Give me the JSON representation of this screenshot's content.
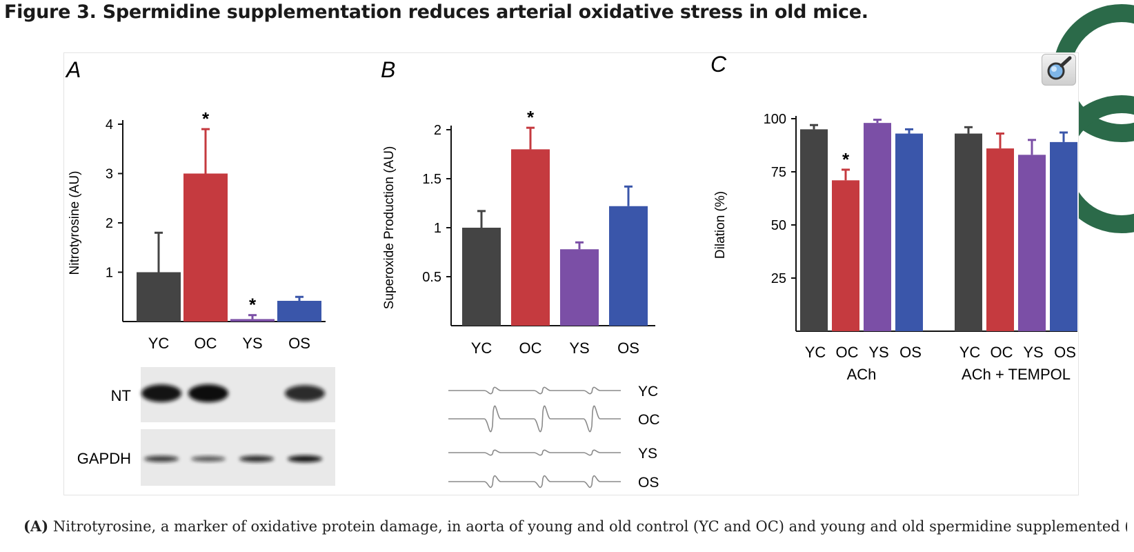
{
  "figure": {
    "title": "Figure 3. Spermidine supplementation reduces arterial oxidative stress in old mice."
  },
  "zoom_button": {
    "icon": "magnifier-icon"
  },
  "panels": {
    "a": {
      "letter": "A",
      "blot": {
        "rows": [
          {
            "label": "NT",
            "intensities": [
              0.95,
              1.0,
              0.0,
              0.78
            ]
          },
          {
            "label": "GAPDH",
            "intensities": [
              0.7,
              0.5,
              0.8,
              0.95
            ]
          }
        ]
      }
    },
    "b": {
      "letter": "B",
      "epr": {
        "labels": [
          "YC",
          "OC",
          "YS",
          "OS"
        ],
        "amplitudes": [
          0.25,
          1.0,
          0.2,
          0.45
        ]
      }
    },
    "c": {
      "letter": "C"
    }
  },
  "chart_data": [
    {
      "id": "panel-a",
      "type": "bar",
      "categories": [
        "YC",
        "OC",
        "YS",
        "OS"
      ],
      "values": [
        1.0,
        3.0,
        0.05,
        0.42
      ],
      "errors": [
        0.8,
        0.9,
        0.08,
        0.08
      ],
      "colors": [
        "#444444",
        "#c53a3f",
        "#7b4fa6",
        "#3a56aa"
      ],
      "significance": [
        "",
        "*",
        "*",
        ""
      ],
      "xlabel": "",
      "ylabel": "Nitrotyrosine (AU)",
      "ylim": [
        0,
        4
      ],
      "yticks": [
        1,
        2,
        3,
        4
      ],
      "ytick_labels": [
        "1",
        "2",
        "3",
        "4"
      ]
    },
    {
      "id": "panel-b",
      "type": "bar",
      "categories": [
        "YC",
        "OC",
        "YS",
        "OS"
      ],
      "values": [
        1.0,
        1.8,
        0.78,
        1.22
      ],
      "errors": [
        0.17,
        0.22,
        0.07,
        0.2
      ],
      "colors": [
        "#444444",
        "#c53a3f",
        "#7b4fa6",
        "#3a56aa"
      ],
      "significance": [
        "",
        "*",
        "",
        ""
      ],
      "xlabel": "",
      "ylabel": "Superoxide Production (AU)",
      "ylim": [
        0,
        2
      ],
      "yticks": [
        0.5,
        1,
        1.5,
        2
      ],
      "ytick_labels": [
        "0.5",
        "1",
        "1.5",
        "2"
      ]
    },
    {
      "id": "panel-c",
      "type": "bar",
      "groups": [
        "ACh",
        "ACh + TEMPOL"
      ],
      "categories": [
        "YC",
        "OC",
        "YS",
        "OS"
      ],
      "series": [
        {
          "name": "ACh",
          "values": [
            95,
            71,
            98,
            93
          ],
          "errors": [
            2,
            5,
            1.5,
            2
          ],
          "significance": [
            "",
            "*",
            "",
            ""
          ]
        },
        {
          "name": "ACh + TEMPOL",
          "values": [
            93,
            86,
            83,
            89
          ],
          "errors": [
            3,
            7,
            7,
            4.5
          ],
          "significance": [
            "",
            "",
            "",
            ""
          ]
        }
      ],
      "colors": [
        "#444444",
        "#c53a3f",
        "#7b4fa6",
        "#3a56aa"
      ],
      "xlabel": "",
      "ylabel": "Dilation (%)",
      "ylim": [
        0,
        100
      ],
      "yticks": [
        25,
        50,
        75,
        100
      ],
      "ytick_labels": [
        "25",
        "50",
        "75",
        "100"
      ]
    }
  ],
  "caption": {
    "label": "(A)",
    "text": "Nitrotyrosine, a marker of oxidative protein damage, in aorta of young and old control (YC and OC) and young and old spermidine supplemented (YS and"
  }
}
